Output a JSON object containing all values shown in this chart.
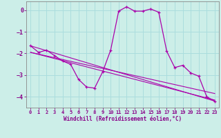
{
  "xlabel": "Windchill (Refroidissement éolien,°C)",
  "bg_color": "#cceee8",
  "grid_color": "#aadddd",
  "line_color": "#aa00aa",
  "xlim": [
    -0.5,
    23.5
  ],
  "ylim": [
    -4.5,
    0.4
  ],
  "yticks": [
    0,
    -1,
    -2,
    -3,
    -4
  ],
  "xticks": [
    0,
    1,
    2,
    3,
    4,
    5,
    6,
    7,
    8,
    9,
    10,
    11,
    12,
    13,
    14,
    15,
    16,
    17,
    18,
    19,
    20,
    21,
    22,
    23
  ],
  "series_main": {
    "x": [
      0,
      1,
      2,
      3,
      4,
      5,
      6,
      7,
      8,
      9,
      10,
      11,
      12,
      13,
      14,
      15,
      16,
      17,
      18,
      19,
      20,
      21,
      22,
      23
    ],
    "y": [
      -1.65,
      -1.95,
      -1.85,
      -2.1,
      -2.35,
      -2.5,
      -3.2,
      -3.55,
      -3.6,
      -2.85,
      -1.85,
      -0.05,
      0.15,
      -0.05,
      -0.05,
      0.05,
      -0.1,
      -1.9,
      -2.65,
      -2.55,
      -2.9,
      -3.05,
      -4.0,
      -4.2
    ]
  },
  "trend_lines": [
    {
      "x": [
        0,
        23
      ],
      "y": [
        -1.65,
        -4.2
      ]
    },
    {
      "x": [
        0,
        23
      ],
      "y": [
        -1.95,
        -4.15
      ]
    },
    {
      "x": [
        0,
        23
      ],
      "y": [
        -1.95,
        -3.85
      ]
    }
  ]
}
